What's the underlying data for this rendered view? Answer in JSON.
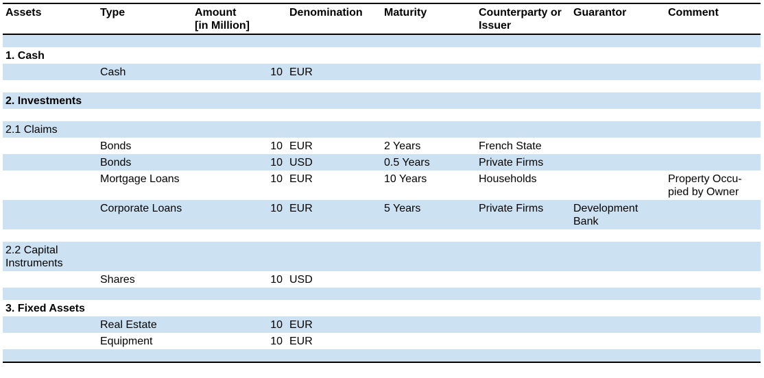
{
  "columns": {
    "assets": "Assets",
    "type": "Type",
    "amount_line1": "Amount",
    "amount_line2": "[in Million]",
    "denomination": "Denomination",
    "maturity": "Maturity",
    "counterparty_line1": "Counterparty or",
    "counterparty_line2": "Issuer",
    "guarantor": "Guarantor",
    "comment": "Comment"
  },
  "sections": {
    "cash": "1. Cash",
    "investments": "2. Investments",
    "claims": "2.1 Claims",
    "capital_line1": "2.2 Capital",
    "capital_line2": "Instruments",
    "fixed_assets": "3. Fixed Assets"
  },
  "rows": [
    {
      "type": "Cash",
      "amount": "10",
      "denomination": "EUR",
      "maturity": "",
      "counterparty": "",
      "guarantor_line1": "",
      "guarantor_line2": "",
      "comment_line1": "",
      "comment_line2": ""
    },
    {
      "type": "Bonds",
      "amount": "10",
      "denomination": "EUR",
      "maturity": "2 Years",
      "counterparty": "French State",
      "guarantor_line1": "",
      "guarantor_line2": "",
      "comment_line1": "",
      "comment_line2": ""
    },
    {
      "type": "Bonds",
      "amount": "10",
      "denomination": "USD",
      "maturity": "0.5 Years",
      "counterparty": "Private Firms",
      "guarantor_line1": "",
      "guarantor_line2": "",
      "comment_line1": "",
      "comment_line2": ""
    },
    {
      "type": "Mortgage Loans",
      "amount": "10",
      "denomination": "EUR",
      "maturity": "10 Years",
      "counterparty": "Households",
      "guarantor_line1": "",
      "guarantor_line2": "",
      "comment_line1": "Property Occu-",
      "comment_line2": "pied by Owner"
    },
    {
      "type": "Corporate Loans",
      "amount": "10",
      "denomination": "EUR",
      "maturity": "5 Years",
      "counterparty": "Private Firms",
      "guarantor_line1": "Development",
      "guarantor_line2": "Bank",
      "comment_line1": "",
      "comment_line2": ""
    },
    {
      "type": "Shares",
      "amount": "10",
      "denomination": "USD",
      "maturity": "",
      "counterparty": "",
      "guarantor_line1": "",
      "guarantor_line2": "",
      "comment_line1": "",
      "comment_line2": ""
    },
    {
      "type": "Real Estate",
      "amount": "10",
      "denomination": "EUR",
      "maturity": "",
      "counterparty": "",
      "guarantor_line1": "",
      "guarantor_line2": "",
      "comment_line1": "",
      "comment_line2": ""
    },
    {
      "type": "Equipment",
      "amount": "10",
      "denomination": "EUR",
      "maturity": "",
      "counterparty": "",
      "guarantor_line1": "",
      "guarantor_line2": "",
      "comment_line1": "",
      "comment_line2": ""
    }
  ],
  "colors": {
    "row_band": "#cce2f2",
    "rule": "#000000"
  }
}
